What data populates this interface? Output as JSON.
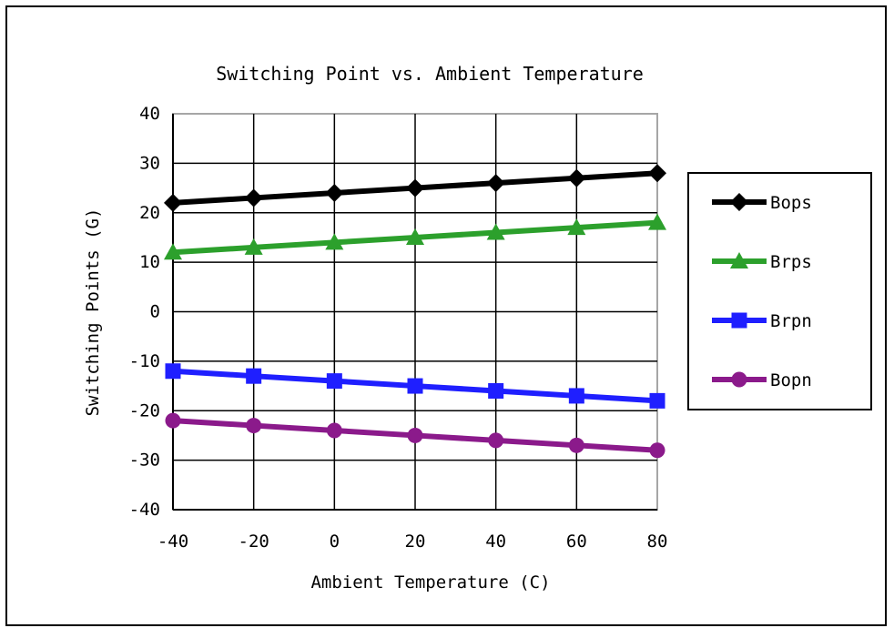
{
  "chart_data": {
    "type": "line",
    "title": "Switching Point vs. Ambient Temperature",
    "xlabel": "Ambient Temperature (C)",
    "ylabel": "Switching Points (G)",
    "x": [
      -40,
      -20,
      0,
      20,
      40,
      60,
      80
    ],
    "xlim": [
      -40,
      80
    ],
    "ylim": [
      -40,
      40
    ],
    "xticks": [
      "-40",
      "-20",
      "0",
      "20",
      "40",
      "60",
      "80"
    ],
    "yticks": [
      "40",
      "30",
      "20",
      "10",
      "0",
      "-10",
      "-20",
      "-30",
      "-40"
    ],
    "grid": true,
    "legend": "right",
    "series": [
      {
        "name": "Bops",
        "values": [
          22,
          23,
          24,
          25,
          26,
          27,
          28
        ],
        "color": "#000000",
        "marker": "diamond"
      },
      {
        "name": "Brps",
        "values": [
          12,
          13,
          14,
          15,
          16,
          17,
          18
        ],
        "color": "#2ca02c",
        "marker": "triangle"
      },
      {
        "name": "Brpn",
        "values": [
          -12,
          -13,
          -14,
          -15,
          -16,
          -17,
          -18
        ],
        "color": "#1f1fff",
        "marker": "square"
      },
      {
        "name": "Bopn",
        "values": [
          -22,
          -23,
          -24,
          -25,
          -26,
          -27,
          -28
        ],
        "color": "#8b1a8b",
        "marker": "circle"
      }
    ]
  }
}
